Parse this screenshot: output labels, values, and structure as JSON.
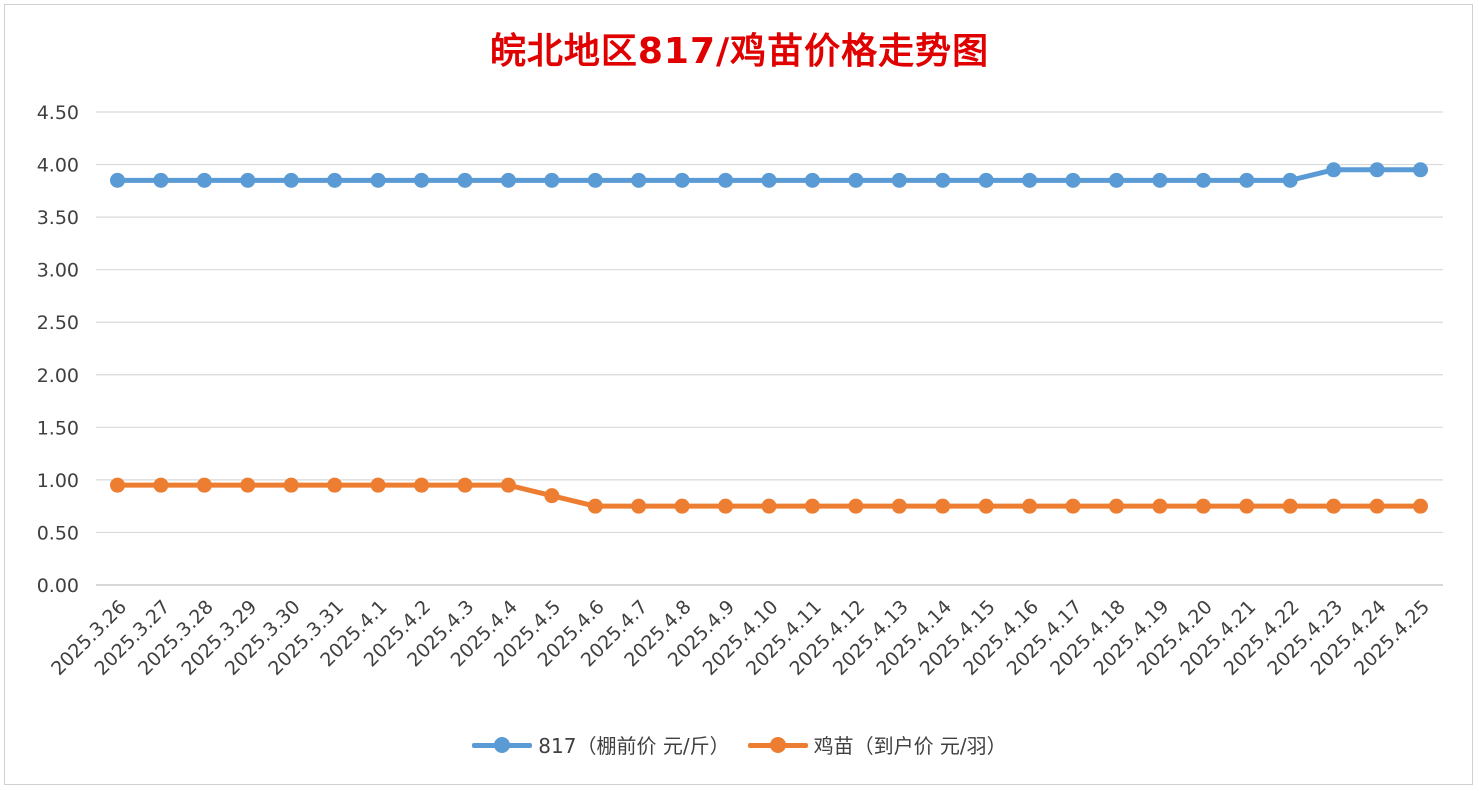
{
  "colors": {
    "series_817": "#5b9bd5",
    "series_chick": "#ed7d31",
    "title": "#e00000",
    "grid": "#d9d9d9"
  },
  "chart_data": {
    "type": "line",
    "title": "皖北地区817/鸡苗价格走势图",
    "xlabel": "",
    "ylabel": "",
    "ylim": [
      0,
      4.5
    ],
    "yticks": [
      "0.00",
      "0.50",
      "1.00",
      "1.50",
      "2.00",
      "2.50",
      "3.00",
      "3.50",
      "4.00",
      "4.50"
    ],
    "grid": true,
    "legend_position": "bottom",
    "categories": [
      "2025.3.26",
      "2025.3.27",
      "2025.3.28",
      "2025.3.29",
      "2025.3.30",
      "2025.3.31",
      "2025.4.1",
      "2025.4.2",
      "2025.4.3",
      "2025.4.4",
      "2025.4.5",
      "2025.4.6",
      "2025.4.7",
      "2025.4.8",
      "2025.4.9",
      "2025.4.10",
      "2025.4.11",
      "2025.4.12",
      "2025.4.13",
      "2025.4.14",
      "2025.4.15",
      "2025.4.16",
      "2025.4.17",
      "2025.4.18",
      "2025.4.19",
      "2025.4.20",
      "2025.4.21",
      "2025.4.22",
      "2025.4.23",
      "2025.4.24",
      "2025.4.25"
    ],
    "series": [
      {
        "name": "817（棚前价 元/斤）",
        "values": [
          3.85,
          3.85,
          3.85,
          3.85,
          3.85,
          3.85,
          3.85,
          3.85,
          3.85,
          3.85,
          3.85,
          3.85,
          3.85,
          3.85,
          3.85,
          3.85,
          3.85,
          3.85,
          3.85,
          3.85,
          3.85,
          3.85,
          3.85,
          3.85,
          3.85,
          3.85,
          3.85,
          3.85,
          3.95,
          3.95,
          3.95
        ]
      },
      {
        "name": "鸡苗（到户价 元/羽）",
        "values": [
          0.95,
          0.95,
          0.95,
          0.95,
          0.95,
          0.95,
          0.95,
          0.95,
          0.95,
          0.95,
          0.85,
          0.75,
          0.75,
          0.75,
          0.75,
          0.75,
          0.75,
          0.75,
          0.75,
          0.75,
          0.75,
          0.75,
          0.75,
          0.75,
          0.75,
          0.75,
          0.75,
          0.75,
          0.75,
          0.75,
          0.75
        ]
      }
    ]
  }
}
